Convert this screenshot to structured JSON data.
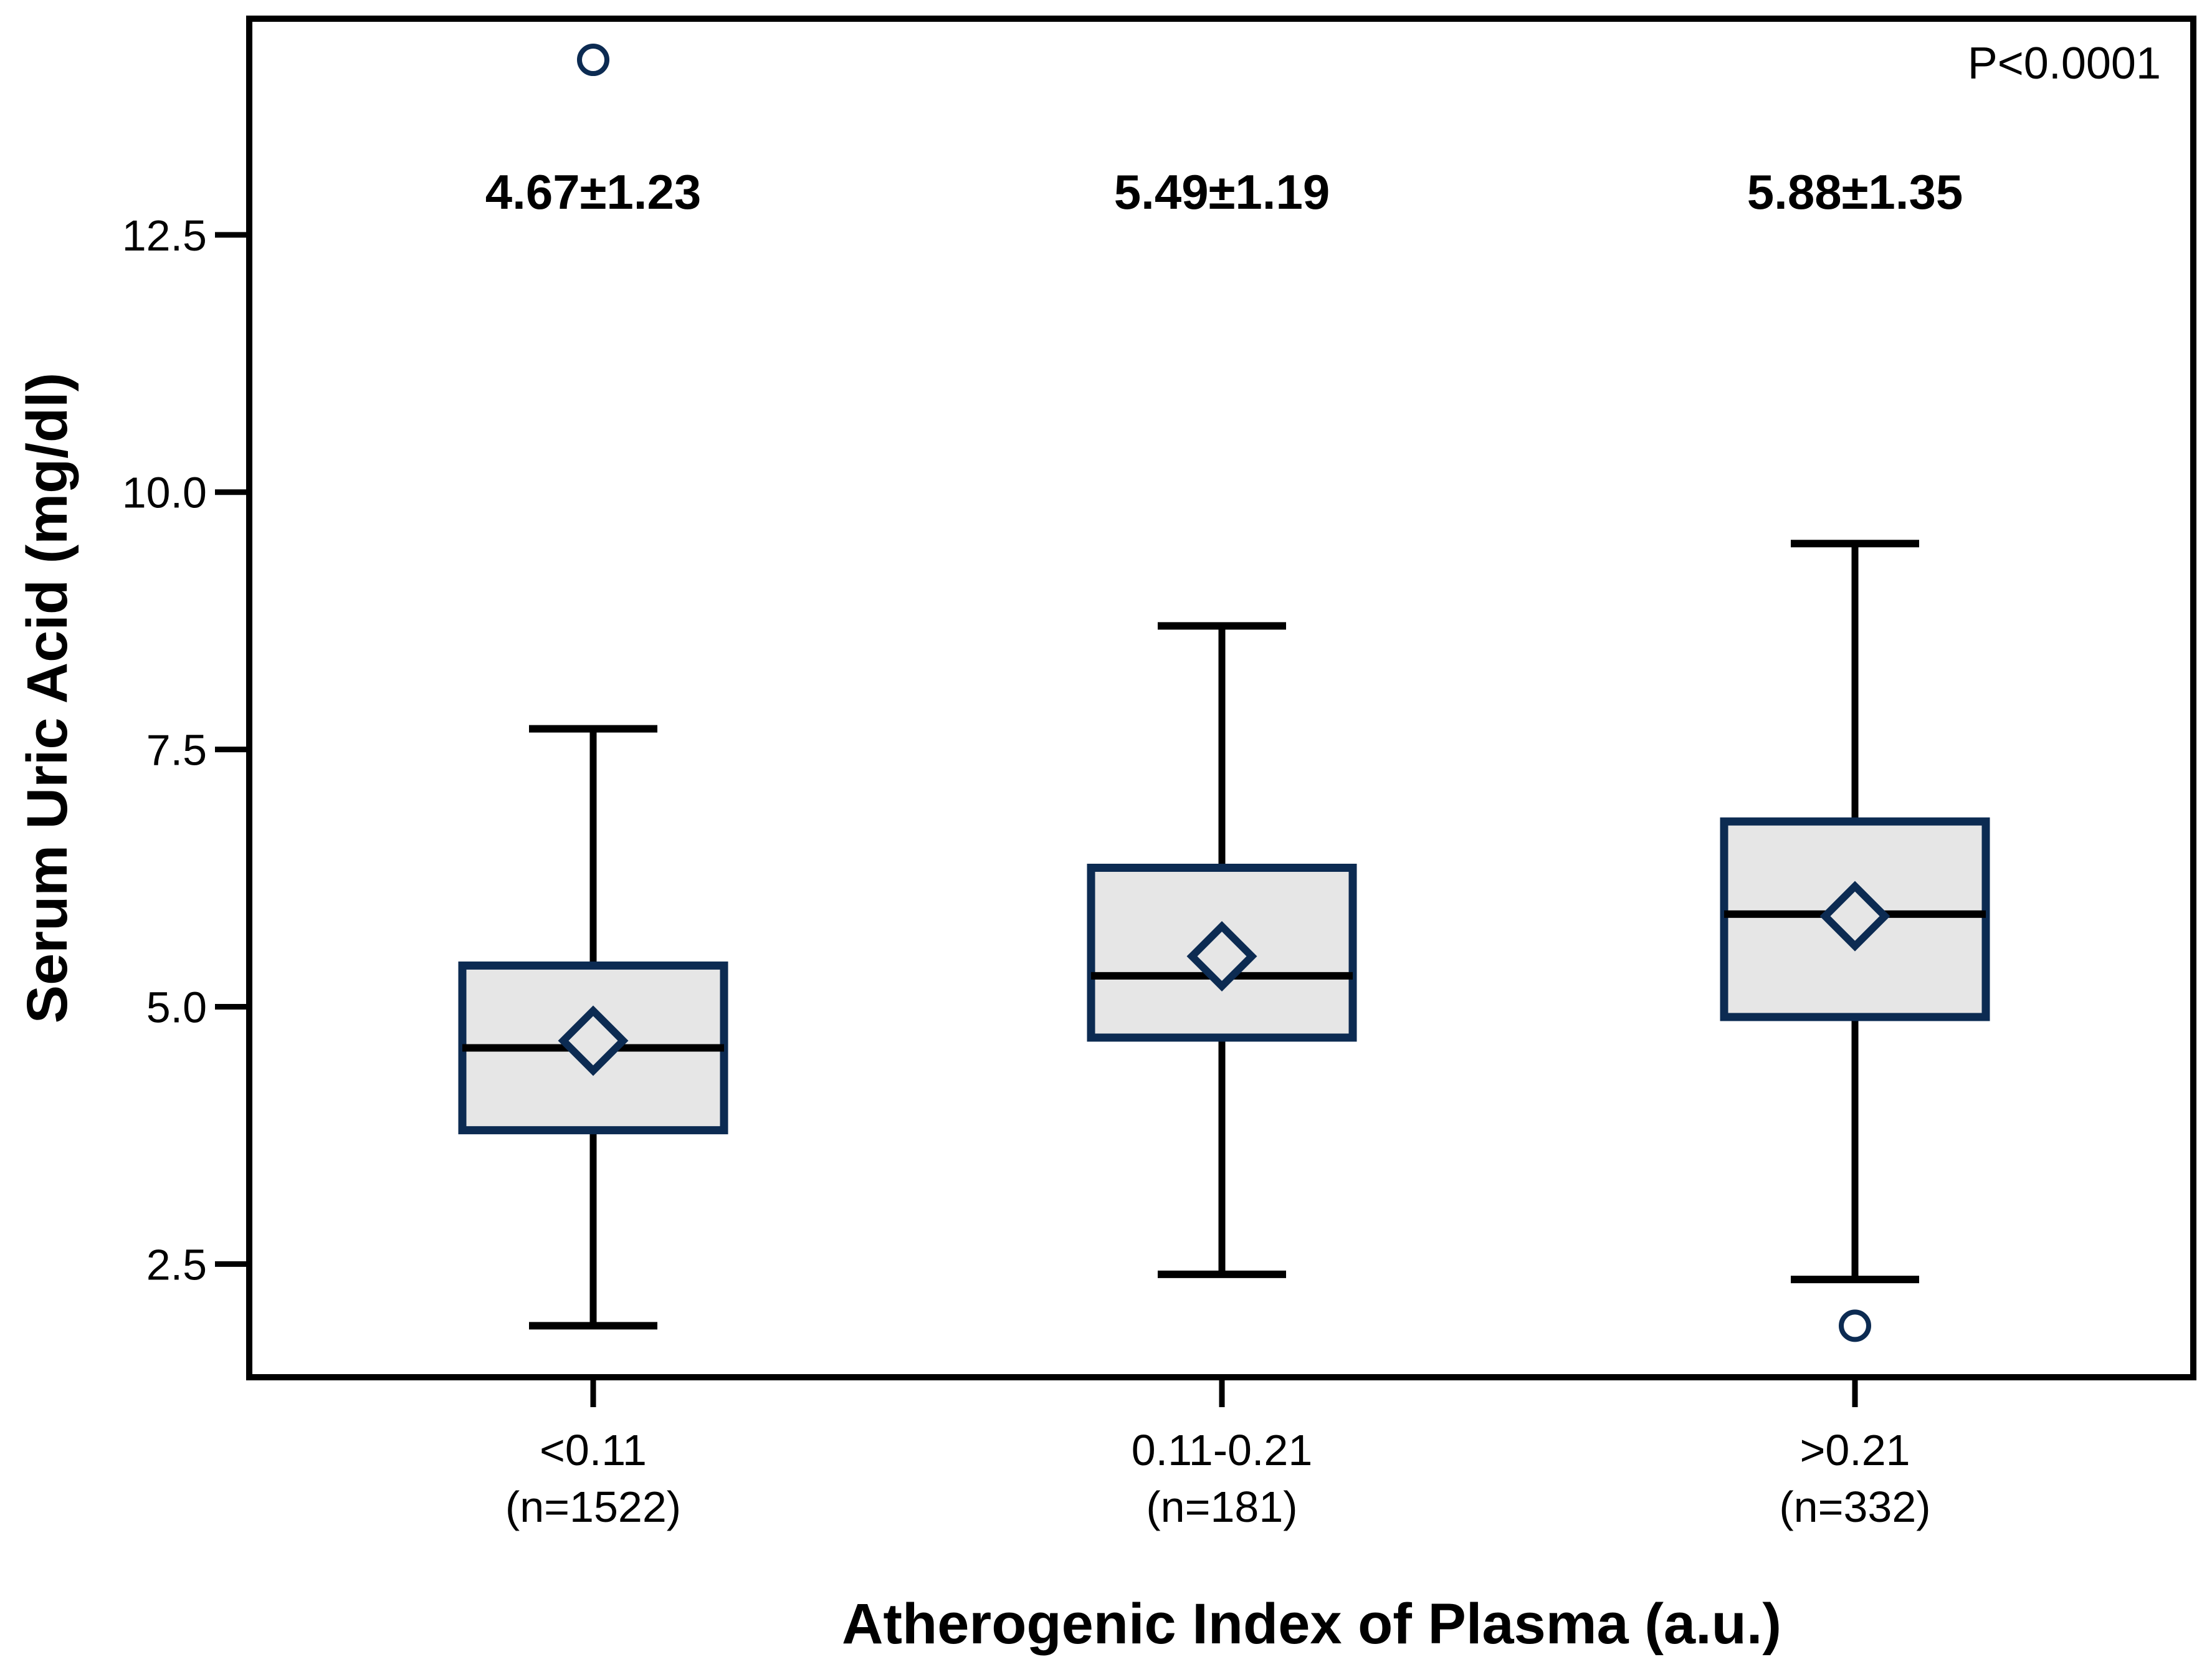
{
  "chart_data": {
    "type": "box",
    "title": "",
    "xlabel": "Atherogenic Index of Plasma (a.u.)",
    "ylabel": "Serum Uric Acid (mg/dl)",
    "annotation": "P<0.0001",
    "ylim": [
      1.4,
      14.6
    ],
    "y_ticks": [
      "2.5",
      "5.0",
      "7.5",
      "10.0",
      "12.5"
    ],
    "grid": false,
    "legend": "none",
    "groups": [
      {
        "category": "<0.11",
        "n_label": "(n=1522)",
        "mean_sd_label": "4.67±1.23",
        "whisker_low": 1.9,
        "q1": 3.8,
        "median": 4.6,
        "q3": 5.4,
        "whisker_high": 7.7,
        "mean": 4.67,
        "outliers": [
          14.2
        ]
      },
      {
        "category": "0.11-0.21",
        "n_label": "(n=181)",
        "mean_sd_label": "5.49±1.19",
        "whisker_low": 2.4,
        "q1": 4.7,
        "median": 5.3,
        "q3": 6.35,
        "whisker_high": 8.7,
        "mean": 5.49,
        "outliers": []
      },
      {
        "category": ">0.21",
        "n_label": "(n=332)",
        "mean_sd_label": "5.88±1.35",
        "whisker_low": 2.35,
        "q1": 4.9,
        "median": 5.9,
        "q3": 6.8,
        "whisker_high": 9.5,
        "mean": 5.88,
        "outliers": [
          1.9
        ]
      }
    ],
    "colors": {
      "box_border": "#0c2b52",
      "box_fill": "#e6e6e6",
      "line": "#000000",
      "text": "#000000",
      "background": "#ffffff"
    }
  }
}
